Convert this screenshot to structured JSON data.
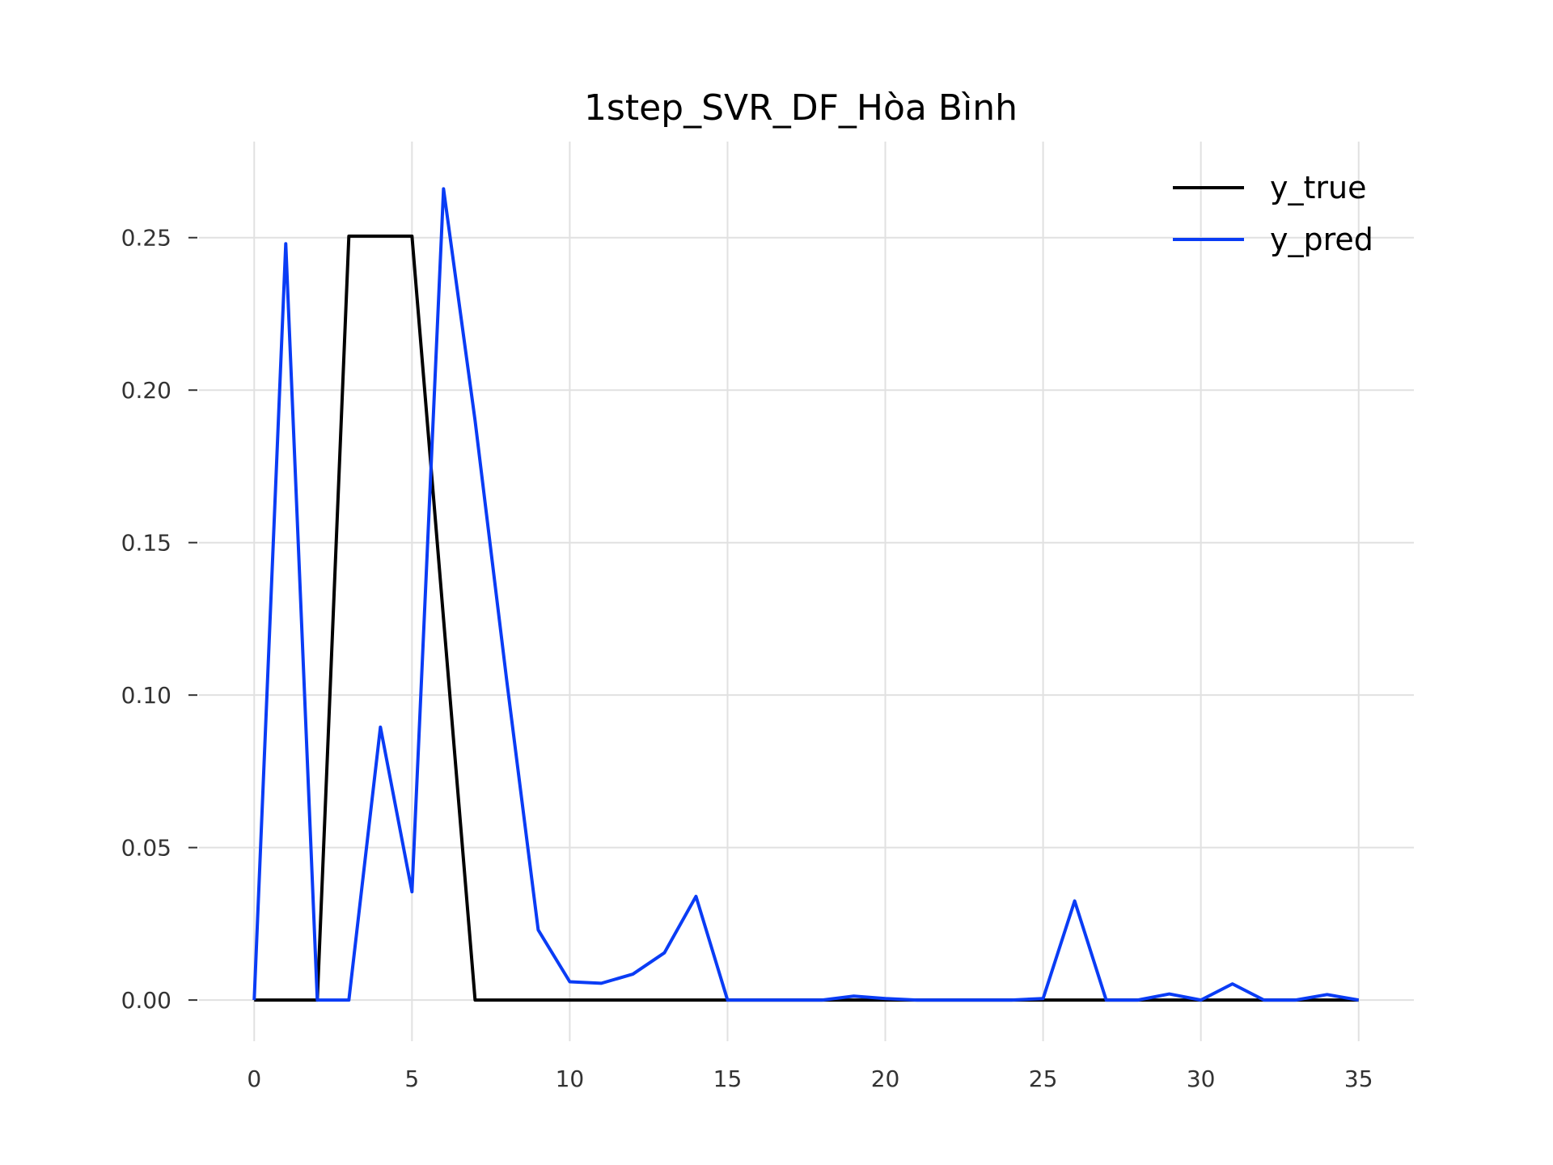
{
  "chart_data": {
    "type": "line",
    "title": "1step_SVR_DF_Hòa Bình",
    "xlabel": "",
    "ylabel": "",
    "xlim": [
      -1.75,
      36.75
    ],
    "ylim": [
      -0.0135,
      0.2815
    ],
    "x_ticks": [
      0,
      5,
      10,
      15,
      20,
      25,
      30,
      35
    ],
    "x_tick_labels": [
      "0",
      "5",
      "10",
      "15",
      "20",
      "25",
      "30",
      "35"
    ],
    "y_ticks": [
      0.0,
      0.05,
      0.1,
      0.15,
      0.2,
      0.25
    ],
    "y_tick_labels": [
      "0.00",
      "0.05",
      "0.10",
      "0.15",
      "0.20",
      "0.25"
    ],
    "grid": true,
    "legend_position": "top-right",
    "x": [
      0,
      1,
      2,
      3,
      4,
      5,
      6,
      7,
      8,
      9,
      10,
      11,
      12,
      13,
      14,
      15,
      16,
      17,
      18,
      19,
      20,
      21,
      22,
      23,
      24,
      25,
      26,
      27,
      28,
      29,
      30,
      31,
      32,
      33,
      34,
      35
    ],
    "series": [
      {
        "name": "y_true",
        "color": "#000000",
        "values": [
          0,
          0,
          0,
          0.2505,
          0.2505,
          0.2505,
          0.125,
          0,
          0,
          0,
          0,
          0,
          0,
          0,
          0,
          0,
          0,
          0,
          0,
          0,
          0,
          0,
          0,
          0,
          0,
          0,
          0,
          0,
          0,
          0,
          0,
          0,
          0,
          0,
          0,
          0
        ]
      },
      {
        "name": "y_pred",
        "color": "#0a3cf5",
        "values": [
          0,
          0.248,
          0,
          0,
          0.0895,
          0.0355,
          0.266,
          0.19,
          0.105,
          0.023,
          0.006,
          0.0055,
          0.0085,
          0.0155,
          0.034,
          0,
          0,
          0,
          0,
          0.0013,
          0.0005,
          0,
          0,
          0,
          0,
          0.0005,
          0.0325,
          0,
          0,
          0.002,
          0,
          0.0053,
          0,
          0,
          0.0018,
          0
        ]
      }
    ]
  }
}
